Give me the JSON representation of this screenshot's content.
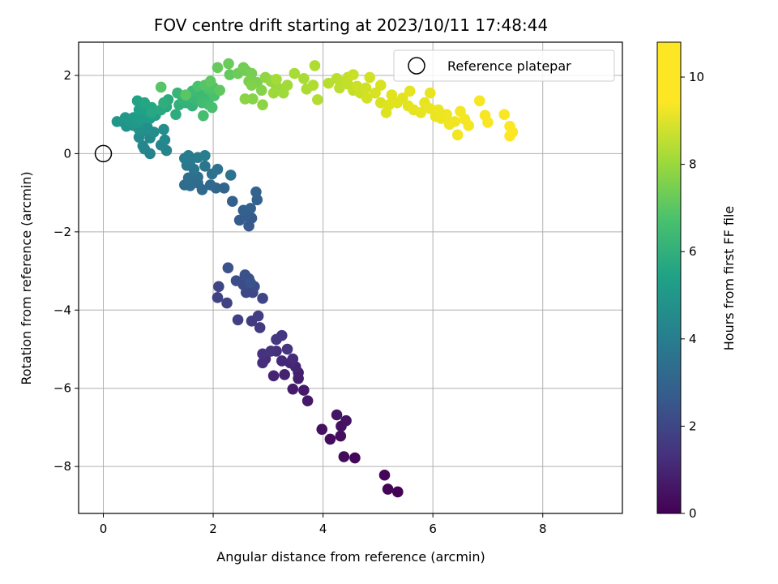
{
  "chart_data": {
    "type": "scatter",
    "title": "FOV centre drift starting at 2023/10/11 17:48:44",
    "xlabel": "Angular distance from reference (arcmin)",
    "ylabel": "Rotation from reference (arcmin)",
    "xlim": [
      -0.45,
      9.45
    ],
    "ylim": [
      -9.2,
      2.85
    ],
    "xticks": [
      0,
      2,
      4,
      6,
      8
    ],
    "yticks": [
      -8,
      -6,
      -4,
      -2,
      0,
      2
    ],
    "grid": true,
    "legend": {
      "placement": "top-right",
      "entries": [
        "Reference platepar"
      ]
    },
    "reference_point": {
      "x": 0,
      "y": 0,
      "marker": "open-circle",
      "label": "Reference platepar"
    },
    "colorbar": {
      "label": "Hours from first FF file",
      "range": [
        0,
        10.8
      ],
      "ticks": [
        0,
        2,
        4,
        6,
        8,
        10
      ],
      "colormap": "viridis"
    },
    "series": [
      {
        "columns": [
          "x",
          "y",
          "hours"
        ],
        "points": [
          [
            5.36,
            -8.65,
            0.05
          ],
          [
            5.18,
            -8.58,
            0.1
          ],
          [
            5.12,
            -8.22,
            0.15
          ],
          [
            4.58,
            -7.78,
            0.2
          ],
          [
            4.38,
            -7.75,
            0.25
          ],
          [
            4.13,
            -7.3,
            0.3
          ],
          [
            4.32,
            -7.22,
            0.35
          ],
          [
            3.98,
            -7.05,
            0.4
          ],
          [
            4.33,
            -6.97,
            0.45
          ],
          [
            4.42,
            -6.83,
            0.5
          ],
          [
            4.25,
            -6.68,
            0.55
          ],
          [
            3.72,
            -6.32,
            0.65
          ],
          [
            3.65,
            -6.05,
            0.7
          ],
          [
            3.45,
            -6.02,
            0.75
          ],
          [
            3.55,
            -5.75,
            0.8
          ],
          [
            3.55,
            -5.6,
            0.85
          ],
          [
            3.3,
            -5.65,
            0.9
          ],
          [
            3.1,
            -5.68,
            0.95
          ],
          [
            3.5,
            -5.45,
            1.0
          ],
          [
            3.4,
            -5.35,
            1.05
          ],
          [
            3.25,
            -5.3,
            1.1
          ],
          [
            3.45,
            -5.25,
            1.15
          ],
          [
            2.95,
            -5.25,
            1.2
          ],
          [
            2.9,
            -5.35,
            1.25
          ],
          [
            3.15,
            -5.05,
            1.3
          ],
          [
            2.9,
            -5.12,
            1.35
          ],
          [
            3.35,
            -5.0,
            1.4
          ],
          [
            3.05,
            -5.05,
            1.45
          ],
          [
            3.25,
            -4.65,
            1.5
          ],
          [
            3.15,
            -4.75,
            1.55
          ],
          [
            2.85,
            -4.45,
            1.65
          ],
          [
            2.7,
            -4.28,
            1.7
          ],
          [
            2.82,
            -4.15,
            1.75
          ],
          [
            2.45,
            -4.25,
            1.8
          ],
          [
            2.25,
            -3.82,
            1.85
          ],
          [
            2.08,
            -3.68,
            1.9
          ],
          [
            2.1,
            -3.4,
            1.95
          ],
          [
            2.9,
            -3.7,
            2.0
          ],
          [
            2.72,
            -3.55,
            2.05
          ],
          [
            2.6,
            -3.55,
            2.1
          ],
          [
            2.75,
            -3.4,
            2.15
          ],
          [
            2.55,
            -3.35,
            2.2
          ],
          [
            2.42,
            -3.25,
            2.25
          ],
          [
            2.65,
            -3.2,
            2.3
          ],
          [
            2.58,
            -3.1,
            2.35
          ],
          [
            2.27,
            -2.92,
            2.4
          ],
          [
            2.68,
            -3.3,
            2.45
          ],
          [
            2.65,
            -1.85,
            2.6
          ],
          [
            2.7,
            -1.65,
            2.65
          ],
          [
            2.48,
            -1.7,
            2.7
          ],
          [
            2.6,
            -1.6,
            2.75
          ],
          [
            2.55,
            -1.45,
            2.8
          ],
          [
            2.35,
            -1.22,
            2.85
          ],
          [
            2.68,
            -1.4,
            2.9
          ],
          [
            2.8,
            -1.18,
            2.95
          ],
          [
            2.78,
            -0.98,
            3.0
          ],
          [
            2.2,
            -0.88,
            3.05
          ],
          [
            2.05,
            -0.88,
            3.1
          ],
          [
            1.95,
            -0.8,
            3.15
          ],
          [
            1.8,
            -0.92,
            3.2
          ],
          [
            1.72,
            -0.75,
            3.25
          ],
          [
            1.58,
            -0.82,
            3.3
          ],
          [
            1.48,
            -0.8,
            3.35
          ],
          [
            1.55,
            -0.62,
            3.4
          ],
          [
            1.72,
            -0.6,
            3.45
          ],
          [
            1.98,
            -0.52,
            3.5
          ],
          [
            2.08,
            -0.4,
            3.55
          ],
          [
            2.32,
            -0.55,
            3.6
          ],
          [
            1.65,
            -0.4,
            3.65
          ],
          [
            1.85,
            -0.32,
            3.7
          ],
          [
            1.52,
            -0.3,
            3.75
          ],
          [
            1.58,
            -0.2,
            3.8
          ],
          [
            1.48,
            -0.12,
            3.85
          ],
          [
            1.55,
            -0.05,
            3.9
          ],
          [
            1.72,
            -0.1,
            3.95
          ],
          [
            1.85,
            -0.05,
            4.0
          ],
          [
            0.85,
            0.0,
            4.15
          ],
          [
            0.75,
            0.12,
            4.2
          ],
          [
            1.15,
            0.08,
            4.25
          ],
          [
            1.05,
            0.22,
            4.3
          ],
          [
            0.72,
            0.2,
            4.35
          ],
          [
            1.12,
            0.35,
            4.4
          ],
          [
            0.85,
            0.4,
            4.45
          ],
          [
            0.65,
            0.42,
            4.5
          ],
          [
            0.92,
            0.55,
            4.55
          ],
          [
            0.72,
            0.58,
            4.6
          ],
          [
            1.1,
            0.62,
            4.65
          ],
          [
            0.8,
            0.68,
            4.7
          ],
          [
            0.65,
            0.62,
            4.75
          ],
          [
            0.55,
            0.72,
            4.8
          ],
          [
            0.42,
            0.7,
            4.85
          ],
          [
            0.35,
            0.82,
            4.9
          ],
          [
            0.25,
            0.82,
            4.95
          ],
          [
            0.5,
            0.78,
            5.0
          ],
          [
            0.62,
            0.8,
            5.05
          ],
          [
            0.4,
            0.92,
            5.1
          ],
          [
            0.55,
            0.92,
            5.15
          ],
          [
            0.68,
            0.88,
            5.2
          ],
          [
            0.85,
            0.9,
            5.25
          ],
          [
            0.95,
            0.98,
            5.3
          ],
          [
            0.8,
            1.08,
            5.35
          ],
          [
            0.65,
            1.12,
            5.4
          ],
          [
            0.72,
            1.2,
            5.45
          ],
          [
            0.62,
            1.35,
            5.5
          ],
          [
            0.88,
            1.18,
            5.55
          ],
          [
            0.75,
            1.3,
            5.6
          ],
          [
            0.88,
            1.05,
            5.65
          ],
          [
            1.05,
            1.12,
            5.7
          ],
          [
            1.15,
            1.2,
            5.75
          ],
          [
            1.18,
            1.38,
            5.8
          ],
          [
            1.32,
            1.0,
            5.85
          ],
          [
            1.1,
            1.3,
            5.9
          ],
          [
            1.38,
            1.25,
            6.0
          ],
          [
            1.5,
            1.3,
            6.05
          ],
          [
            1.62,
            1.22,
            6.1
          ],
          [
            1.45,
            1.4,
            6.15
          ],
          [
            1.35,
            1.55,
            6.2
          ],
          [
            1.55,
            1.45,
            6.25
          ],
          [
            1.68,
            1.38,
            6.3
          ],
          [
            1.75,
            1.55,
            6.35
          ],
          [
            1.62,
            1.6,
            6.4
          ],
          [
            1.88,
            1.48,
            6.45
          ],
          [
            1.8,
            1.3,
            6.5
          ],
          [
            1.92,
            1.25,
            6.55
          ],
          [
            1.82,
            0.97,
            6.6
          ],
          [
            1.98,
            1.18,
            6.65
          ],
          [
            2.02,
            1.48,
            6.7
          ],
          [
            1.72,
            1.72,
            6.75
          ],
          [
            1.92,
            1.65,
            6.8
          ],
          [
            2.0,
            1.7,
            6.85
          ],
          [
            1.85,
            1.75,
            6.9
          ],
          [
            1.05,
            1.7,
            6.95
          ],
          [
            1.5,
            1.5,
            7.0
          ],
          [
            1.95,
            1.85,
            7.05
          ],
          [
            2.12,
            1.62,
            7.1
          ],
          [
            2.3,
            2.02,
            7.15
          ],
          [
            2.08,
            2.2,
            7.2
          ],
          [
            2.28,
            2.3,
            7.25
          ],
          [
            2.45,
            2.05,
            7.3
          ],
          [
            2.6,
            2.12,
            7.35
          ],
          [
            2.55,
            2.2,
            7.4
          ],
          [
            2.7,
            2.05,
            7.45
          ],
          [
            2.65,
            1.85,
            7.5
          ],
          [
            2.8,
            1.82,
            7.55
          ],
          [
            2.7,
            1.75,
            7.6
          ],
          [
            2.88,
            1.62,
            7.65
          ],
          [
            2.72,
            1.4,
            7.7
          ],
          [
            2.58,
            1.4,
            7.75
          ],
          [
            2.9,
            1.25,
            7.8
          ],
          [
            2.95,
            1.95,
            7.85
          ],
          [
            3.05,
            1.85,
            7.9
          ],
          [
            3.15,
            1.72,
            7.95
          ],
          [
            3.22,
            1.65,
            8.0
          ],
          [
            3.1,
            1.55,
            8.05
          ],
          [
            3.28,
            1.55,
            8.1
          ],
          [
            3.35,
            1.75,
            8.15
          ],
          [
            3.15,
            1.9,
            8.2
          ],
          [
            3.48,
            2.05,
            8.25
          ],
          [
            3.65,
            1.92,
            8.3
          ],
          [
            3.7,
            1.65,
            8.35
          ],
          [
            3.82,
            1.75,
            8.4
          ],
          [
            3.85,
            2.25,
            8.45
          ],
          [
            3.9,
            1.38,
            8.5
          ],
          [
            4.1,
            1.8,
            8.6
          ],
          [
            4.25,
            1.92,
            8.65
          ],
          [
            4.3,
            1.68,
            8.7
          ],
          [
            4.35,
            1.82,
            8.75
          ],
          [
            4.45,
            1.78,
            8.8
          ],
          [
            4.55,
            1.62,
            8.85
          ],
          [
            4.45,
            1.95,
            8.9
          ],
          [
            4.55,
            2.02,
            8.95
          ],
          [
            4.68,
            1.55,
            9.0
          ],
          [
            4.62,
            1.72,
            9.05
          ],
          [
            4.78,
            1.68,
            9.1
          ],
          [
            4.85,
            1.95,
            9.15
          ],
          [
            4.8,
            1.42,
            9.2
          ],
          [
            4.95,
            1.55,
            9.25
          ],
          [
            5.05,
            1.75,
            9.3
          ],
          [
            5.05,
            1.3,
            9.35
          ],
          [
            5.15,
            1.05,
            9.4
          ],
          [
            5.2,
            1.25,
            9.45
          ],
          [
            5.25,
            1.5,
            9.5
          ],
          [
            5.35,
            1.3,
            9.55
          ],
          [
            5.45,
            1.42,
            9.6
          ],
          [
            5.55,
            1.22,
            9.65
          ],
          [
            5.58,
            1.6,
            9.7
          ],
          [
            5.65,
            1.12,
            9.75
          ],
          [
            5.78,
            1.05,
            9.8
          ],
          [
            5.85,
            1.3,
            9.85
          ],
          [
            5.95,
            1.55,
            9.9
          ],
          [
            5.95,
            1.15,
            9.95
          ],
          [
            6.05,
            0.95,
            10.0
          ],
          [
            6.1,
            1.12,
            10.05
          ],
          [
            6.15,
            0.9,
            10.1
          ],
          [
            6.25,
            1.0,
            10.15
          ],
          [
            6.3,
            0.75,
            10.2
          ],
          [
            6.4,
            0.82,
            10.25
          ],
          [
            6.45,
            0.48,
            10.3
          ],
          [
            6.5,
            1.08,
            10.35
          ],
          [
            6.58,
            0.88,
            10.4
          ],
          [
            6.65,
            0.72,
            10.45
          ],
          [
            6.85,
            1.35,
            10.5
          ],
          [
            6.95,
            0.98,
            10.55
          ],
          [
            7.0,
            0.8,
            10.6
          ],
          [
            7.3,
            1.0,
            10.65
          ],
          [
            7.4,
            0.7,
            10.7
          ],
          [
            7.45,
            0.55,
            10.75
          ],
          [
            7.4,
            0.45,
            10.8
          ]
        ]
      }
    ]
  }
}
